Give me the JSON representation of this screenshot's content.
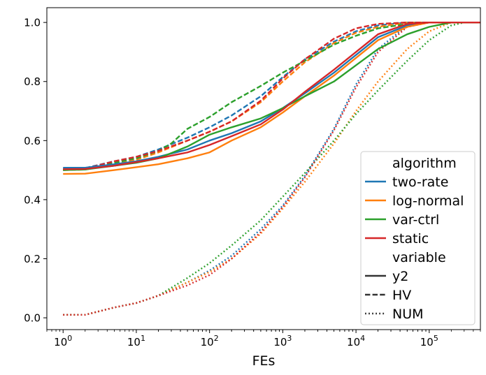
{
  "chart_data": {
    "type": "line",
    "title": "",
    "xlabel": "FEs",
    "ylabel": "",
    "xscale": "log",
    "xlim": [
      0.6,
      500000
    ],
    "ylim": [
      -0.04,
      1.05
    ],
    "grid": false,
    "x_ticks": [
      {
        "value": 1,
        "base": "10",
        "exp": "0"
      },
      {
        "value": 10,
        "base": "10",
        "exp": "1"
      },
      {
        "value": 100,
        "base": "10",
        "exp": "2"
      },
      {
        "value": 1000,
        "base": "10",
        "exp": "3"
      },
      {
        "value": 10000,
        "base": "10",
        "exp": "4"
      },
      {
        "value": 100000,
        "base": "10",
        "exp": "5"
      }
    ],
    "y_ticks": [
      {
        "value": 0.0,
        "label": "0.0"
      },
      {
        "value": 0.2,
        "label": "0.2"
      },
      {
        "value": 0.4,
        "label": "0.4"
      },
      {
        "value": 0.6,
        "label": "0.6"
      },
      {
        "value": 0.8,
        "label": "0.8"
      },
      {
        "value": 1.0,
        "label": "1.0"
      }
    ],
    "legend": {
      "position": "lower-right",
      "entries": [
        {
          "kind": "header",
          "label": "algorithm"
        },
        {
          "kind": "color",
          "label": "two-rate",
          "color": "#1f77b4"
        },
        {
          "kind": "color",
          "label": "log-normal",
          "color": "#ff7f0e"
        },
        {
          "kind": "color",
          "label": "var-ctrl",
          "color": "#2ca02c"
        },
        {
          "kind": "color",
          "label": "static",
          "color": "#d62728"
        },
        {
          "kind": "header",
          "label": "variable"
        },
        {
          "kind": "style",
          "label": "y2",
          "dash": "solid"
        },
        {
          "kind": "style",
          "label": "HV",
          "dash": "dashed"
        },
        {
          "kind": "style",
          "label": "NUM",
          "dash": "dotted"
        }
      ]
    },
    "series": [
      {
        "algorithm": "two-rate",
        "variable": "y2",
        "color": "#1f77b4",
        "dash": "solid",
        "x": [
          1,
          2,
          5,
          10,
          20,
          50,
          100,
          200,
          500,
          1000,
          2000,
          5000,
          10000,
          20000,
          50000,
          100000,
          200000,
          500000
        ],
        "y": [
          0.508,
          0.508,
          0.52,
          0.53,
          0.545,
          0.57,
          0.6,
          0.625,
          0.665,
          0.71,
          0.76,
          0.83,
          0.89,
          0.95,
          0.99,
          1.0,
          1.0,
          1.0
        ]
      },
      {
        "algorithm": "log-normal",
        "variable": "y2",
        "color": "#ff7f0e",
        "dash": "solid",
        "x": [
          1,
          2,
          5,
          10,
          20,
          50,
          100,
          200,
          500,
          1000,
          2000,
          5000,
          10000,
          20000,
          50000,
          100000,
          200000,
          500000
        ],
        "y": [
          0.487,
          0.488,
          0.5,
          0.51,
          0.52,
          0.54,
          0.56,
          0.6,
          0.645,
          0.695,
          0.75,
          0.82,
          0.88,
          0.94,
          0.985,
          1.0,
          1.0,
          1.0
        ]
      },
      {
        "algorithm": "var-ctrl",
        "variable": "y2",
        "color": "#2ca02c",
        "dash": "solid",
        "x": [
          1,
          2,
          5,
          10,
          20,
          50,
          100,
          200,
          500,
          1000,
          2000,
          5000,
          10000,
          20000,
          50000,
          100000,
          200000,
          500000
        ],
        "y": [
          0.5,
          0.502,
          0.515,
          0.525,
          0.54,
          0.58,
          0.62,
          0.645,
          0.675,
          0.71,
          0.75,
          0.8,
          0.855,
          0.91,
          0.96,
          0.985,
          1.0,
          1.0
        ]
      },
      {
        "algorithm": "static",
        "variable": "y2",
        "color": "#d62728",
        "dash": "solid",
        "x": [
          1,
          2,
          5,
          10,
          20,
          50,
          100,
          200,
          500,
          1000,
          2000,
          5000,
          10000,
          20000,
          50000,
          100000,
          200000,
          500000
        ],
        "y": [
          0.503,
          0.504,
          0.515,
          0.527,
          0.54,
          0.56,
          0.585,
          0.615,
          0.655,
          0.705,
          0.765,
          0.84,
          0.9,
          0.96,
          0.995,
          1.0,
          1.0,
          1.0
        ]
      },
      {
        "algorithm": "two-rate",
        "variable": "HV",
        "color": "#1f77b4",
        "dash": "dashed",
        "x": [
          1,
          2,
          5,
          10,
          20,
          50,
          100,
          200,
          500,
          1000,
          2000,
          5000,
          10000,
          20000,
          50000,
          100000,
          200000
        ],
        "y": [
          0.505,
          0.507,
          0.53,
          0.545,
          0.57,
          0.61,
          0.645,
          0.685,
          0.75,
          0.815,
          0.875,
          0.935,
          0.97,
          0.99,
          1.0,
          1.0,
          1.0
        ]
      },
      {
        "algorithm": "log-normal",
        "variable": "HV",
        "color": "#ff7f0e",
        "dash": "dashed",
        "x": [
          1,
          2,
          5,
          10,
          20,
          50,
          100,
          200,
          500,
          1000,
          2000,
          5000,
          10000,
          20000,
          50000,
          100000,
          200000
        ],
        "y": [
          0.5,
          0.502,
          0.52,
          0.535,
          0.56,
          0.6,
          0.63,
          0.665,
          0.73,
          0.8,
          0.865,
          0.93,
          0.965,
          0.985,
          1.0,
          1.0,
          1.0
        ]
      },
      {
        "algorithm": "var-ctrl",
        "variable": "HV",
        "color": "#2ca02c",
        "dash": "dashed",
        "x": [
          1,
          2,
          5,
          10,
          20,
          30,
          50,
          100,
          200,
          500,
          1000,
          2000,
          5000,
          10000,
          20000,
          50000,
          100000,
          200000
        ],
        "y": [
          0.5,
          0.505,
          0.525,
          0.54,
          0.565,
          0.59,
          0.64,
          0.68,
          0.73,
          0.785,
          0.83,
          0.87,
          0.925,
          0.955,
          0.98,
          0.995,
          1.0,
          1.0
        ]
      },
      {
        "algorithm": "static",
        "variable": "HV",
        "color": "#d62728",
        "dash": "dashed",
        "x": [
          1,
          2,
          5,
          10,
          20,
          50,
          100,
          200,
          500,
          1000,
          2000,
          5000,
          10000,
          20000,
          50000,
          100000,
          200000
        ],
        "y": [
          0.502,
          0.505,
          0.53,
          0.545,
          0.565,
          0.6,
          0.63,
          0.665,
          0.735,
          0.81,
          0.875,
          0.945,
          0.98,
          0.995,
          1.0,
          1.0,
          1.0
        ]
      },
      {
        "algorithm": "two-rate",
        "variable": "NUM",
        "color": "#1f77b4",
        "dash": "dotted",
        "x": [
          1,
          2,
          5,
          10,
          20,
          50,
          100,
          200,
          500,
          1000,
          2000,
          5000,
          10000,
          20000,
          50000,
          100000
        ],
        "y": [
          0.01,
          0.01,
          0.035,
          0.05,
          0.075,
          0.12,
          0.16,
          0.21,
          0.3,
          0.38,
          0.48,
          0.64,
          0.79,
          0.91,
          0.99,
          1.0
        ]
      },
      {
        "algorithm": "log-normal",
        "variable": "NUM",
        "color": "#ff7f0e",
        "dash": "dotted",
        "x": [
          1,
          2,
          5,
          10,
          20,
          50,
          100,
          200,
          500,
          1000,
          2000,
          5000,
          10000,
          20000,
          50000,
          100000,
          200000
        ],
        "y": [
          0.01,
          0.01,
          0.035,
          0.05,
          0.075,
          0.12,
          0.155,
          0.2,
          0.285,
          0.37,
          0.46,
          0.59,
          0.7,
          0.8,
          0.91,
          0.97,
          1.0
        ]
      },
      {
        "algorithm": "var-ctrl",
        "variable": "NUM",
        "color": "#2ca02c",
        "dash": "dotted",
        "x": [
          1,
          2,
          5,
          10,
          20,
          50,
          100,
          200,
          500,
          1000,
          2000,
          5000,
          10000,
          20000,
          50000,
          100000,
          200000,
          300000
        ],
        "y": [
          0.01,
          0.01,
          0.035,
          0.05,
          0.075,
          0.135,
          0.185,
          0.245,
          0.33,
          0.41,
          0.49,
          0.6,
          0.69,
          0.77,
          0.87,
          0.94,
          0.99,
          1.0
        ]
      },
      {
        "algorithm": "static",
        "variable": "NUM",
        "color": "#d62728",
        "dash": "dotted",
        "x": [
          1,
          2,
          5,
          10,
          20,
          50,
          100,
          200,
          500,
          1000,
          2000,
          5000,
          10000,
          20000,
          50000,
          100000
        ],
        "y": [
          0.01,
          0.01,
          0.035,
          0.05,
          0.075,
          0.11,
          0.145,
          0.2,
          0.29,
          0.375,
          0.475,
          0.635,
          0.78,
          0.9,
          0.985,
          1.0
        ]
      }
    ]
  }
}
